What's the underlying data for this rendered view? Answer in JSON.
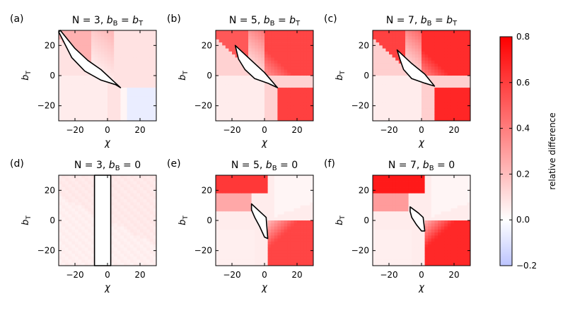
{
  "chart_data": {
    "type": "heatmap",
    "colormap": "bwr",
    "colorbar": {
      "label": "relative difference",
      "range": [
        -0.2,
        0.8
      ],
      "ticks": [
        "0.8",
        "0.6",
        "0.4",
        "0.2",
        "0.0",
        "−0.2"
      ],
      "tick_values": [
        0.8,
        0.6,
        0.4,
        0.2,
        0.0,
        -0.2
      ],
      "min_color": "#3344ff",
      "max_color": "#ff0000"
    },
    "xlabel": "χ",
    "ylabel_main": "b",
    "ylabel_sub": "T",
    "x_range": [
      -30,
      30
    ],
    "y_range": [
      -30,
      30
    ],
    "x_ticks": [
      "−20",
      "0",
      "20"
    ],
    "x_tick_values": [
      -20,
      0,
      20
    ],
    "y_ticks": [
      "20",
      "0",
      "−20"
    ],
    "y_tick_values": [
      20,
      0,
      -20
    ],
    "panels": [
      {
        "label": "(a)",
        "N": "3",
        "condition": "b_B = b_T",
        "title_parts": [
          "N = 3, ",
          "b",
          "B",
          " = ",
          "b",
          "T"
        ],
        "strength": 0.35,
        "negative_corner": true,
        "region": [
          [
            -29,
            30
          ],
          [
            -20,
            18
          ],
          [
            -12,
            10
          ],
          [
            -4,
            4
          ],
          [
            3,
            -3
          ],
          [
            8,
            -8
          ],
          [
            5,
            -6
          ],
          [
            -4,
            -3
          ],
          [
            -14,
            3
          ],
          [
            -22,
            12
          ],
          [
            -30,
            29
          ]
        ]
      },
      {
        "label": "(b)",
        "N": "5",
        "condition": "b_B = b_T",
        "title_parts": [
          "N = 5, ",
          "b",
          "B",
          " = ",
          "b",
          "T"
        ],
        "strength": 0.75,
        "negative_corner": false,
        "region": [
          [
            -18,
            20
          ],
          [
            -8,
            10
          ],
          [
            0,
            2
          ],
          [
            8,
            -8
          ],
          [
            2,
            -5
          ],
          [
            -6,
            -2
          ],
          [
            -12,
            4
          ],
          [
            -16,
            11
          ]
        ]
      },
      {
        "label": "(c)",
        "N": "7",
        "condition": "b_B = b_T",
        "title_parts": [
          "N = 7, ",
          "b",
          "B",
          " = ",
          "b",
          "T"
        ],
        "strength": 0.85,
        "negative_corner": false,
        "region": [
          [
            -15,
            17
          ],
          [
            -6,
            8
          ],
          [
            2,
            1
          ],
          [
            8,
            -7
          ],
          [
            2,
            -5
          ],
          [
            -6,
            -2
          ],
          [
            -11,
            4
          ],
          [
            -13,
            10
          ]
        ]
      },
      {
        "label": "(d)",
        "N": "3",
        "condition": "b_B = 0",
        "title_parts": [
          "N = 3, ",
          "b",
          "B",
          " = 0"
        ],
        "strength": 0.22,
        "negative_corner": false,
        "region": [
          [
            -8,
            30
          ],
          [
            2,
            30
          ],
          [
            2,
            -30
          ],
          [
            -8,
            -30
          ]
        ]
      },
      {
        "label": "(e)",
        "N": "5",
        "condition": "b_B = 0",
        "title_parts": [
          "N = 5, ",
          "b",
          "B",
          " = 0"
        ],
        "strength": 0.78,
        "negative_corner": false,
        "region": [
          [
            -8,
            11
          ],
          [
            -2,
            5
          ],
          [
            1,
            2
          ],
          [
            2,
            -12
          ],
          [
            0,
            -11
          ],
          [
            -3,
            -4
          ],
          [
            -6,
            2
          ],
          [
            -8,
            7
          ]
        ]
      },
      {
        "label": "(f)",
        "N": "7",
        "condition": "b_B = 0",
        "title_parts": [
          "N = 7, ",
          "b",
          "B",
          " = 0"
        ],
        "strength": 0.9,
        "negative_corner": false,
        "region": [
          [
            -7,
            9
          ],
          [
            -2,
            5
          ],
          [
            1,
            2
          ],
          [
            2,
            -7
          ],
          [
            0,
            -7
          ],
          [
            -3,
            -3
          ],
          [
            -6,
            2
          ],
          [
            -7,
            6
          ]
        ]
      }
    ]
  }
}
